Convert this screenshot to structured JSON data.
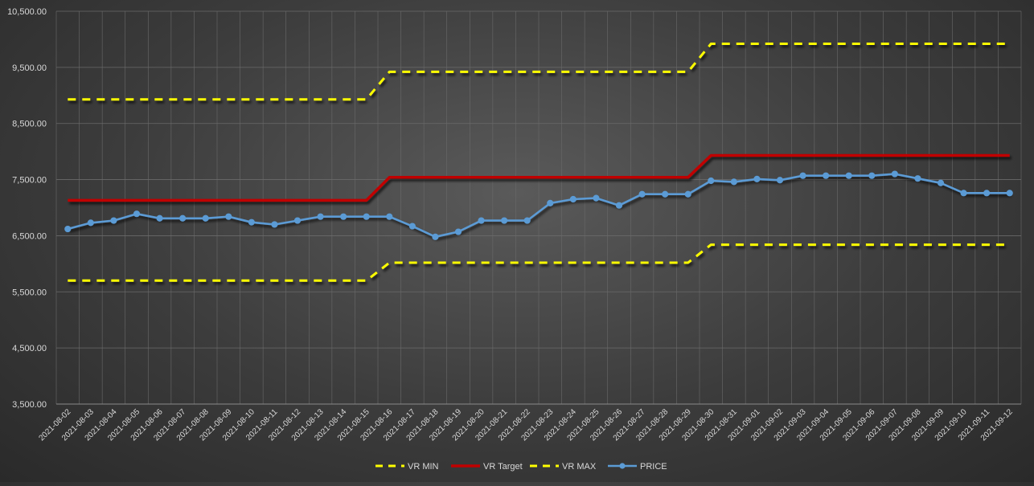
{
  "chart_data": {
    "type": "line",
    "categories": [
      "2021-08-02",
      "2021-08-03",
      "2021-08-04",
      "2021-08-05",
      "2021-08-06",
      "2021-08-07",
      "2021-08-08",
      "2021-08-09",
      "2021-08-10",
      "2021-08-11",
      "2021-08-12",
      "2021-08-13",
      "2021-08-14",
      "2021-08-15",
      "2021-08-16",
      "2021-08-17",
      "2021-08-18",
      "2021-08-19",
      "2021-08-20",
      "2021-08-21",
      "2021-08-22",
      "2021-08-23",
      "2021-08-24",
      "2021-08-25",
      "2021-08-26",
      "2021-08-27",
      "2021-08-28",
      "2021-08-29",
      "2021-08-30",
      "2021-08-31",
      "2021-09-01",
      "2021-09-02",
      "2021-09-03",
      "2021-09-04",
      "2021-09-05",
      "2021-09-06",
      "2021-09-07",
      "2021-09-08",
      "2021-09-09",
      "2021-09-10",
      "2021-09-11",
      "2021-09-12"
    ],
    "ylim": [
      3500,
      10500
    ],
    "yticks": [
      "3,500.00",
      "4,500.00",
      "5,500.00",
      "6,500.00",
      "7,500.00",
      "8,500.00",
      "9,500.00",
      "10,500.00"
    ],
    "grid": true,
    "legend_position": "bottom",
    "series": [
      {
        "name": "VR MIN",
        "color": "#ffff00",
        "style": "dashed",
        "values": [
          5700,
          5700,
          5700,
          5700,
          5700,
          5700,
          5700,
          5700,
          5700,
          5700,
          5700,
          5700,
          5700,
          5700,
          6020,
          6020,
          6020,
          6020,
          6020,
          6020,
          6020,
          6020,
          6020,
          6020,
          6020,
          6020,
          6020,
          6020,
          6340,
          6340,
          6340,
          6340,
          6340,
          6340,
          6340,
          6340,
          6340,
          6340,
          6340,
          6340,
          6340,
          6340
        ]
      },
      {
        "name": "VR Target",
        "color": "#c00000",
        "style": "solid",
        "values": [
          7130,
          7130,
          7130,
          7130,
          7130,
          7130,
          7130,
          7130,
          7130,
          7130,
          7130,
          7130,
          7130,
          7130,
          7540,
          7540,
          7540,
          7540,
          7540,
          7540,
          7540,
          7540,
          7540,
          7540,
          7540,
          7540,
          7540,
          7540,
          7930,
          7930,
          7930,
          7930,
          7930,
          7930,
          7930,
          7930,
          7930,
          7930,
          7930,
          7930,
          7930,
          7930
        ]
      },
      {
        "name": "VR MAX",
        "color": "#ffff00",
        "style": "dashed",
        "values": [
          8930,
          8930,
          8930,
          8930,
          8930,
          8930,
          8930,
          8930,
          8930,
          8930,
          8930,
          8930,
          8930,
          8930,
          9420,
          9420,
          9420,
          9420,
          9420,
          9420,
          9420,
          9420,
          9420,
          9420,
          9420,
          9420,
          9420,
          9420,
          9920,
          9920,
          9920,
          9920,
          9920,
          9920,
          9920,
          9920,
          9920,
          9920,
          9920,
          9920,
          9920,
          9920
        ]
      },
      {
        "name": "PRICE",
        "color": "#5b9bd5",
        "style": "solid-markers",
        "values": [
          6620,
          6730,
          6770,
          6890,
          6810,
          6810,
          6810,
          6840,
          6740,
          6700,
          6770,
          6840,
          6840,
          6840,
          6840,
          6670,
          6480,
          6570,
          6770,
          6770,
          6770,
          7080,
          7150,
          7170,
          7040,
          7240,
          7240,
          7240,
          7480,
          7460,
          7510,
          7490,
          7570,
          7570,
          7570,
          7570,
          7600,
          7520,
          7440,
          7260,
          7260,
          7260
        ]
      }
    ]
  }
}
